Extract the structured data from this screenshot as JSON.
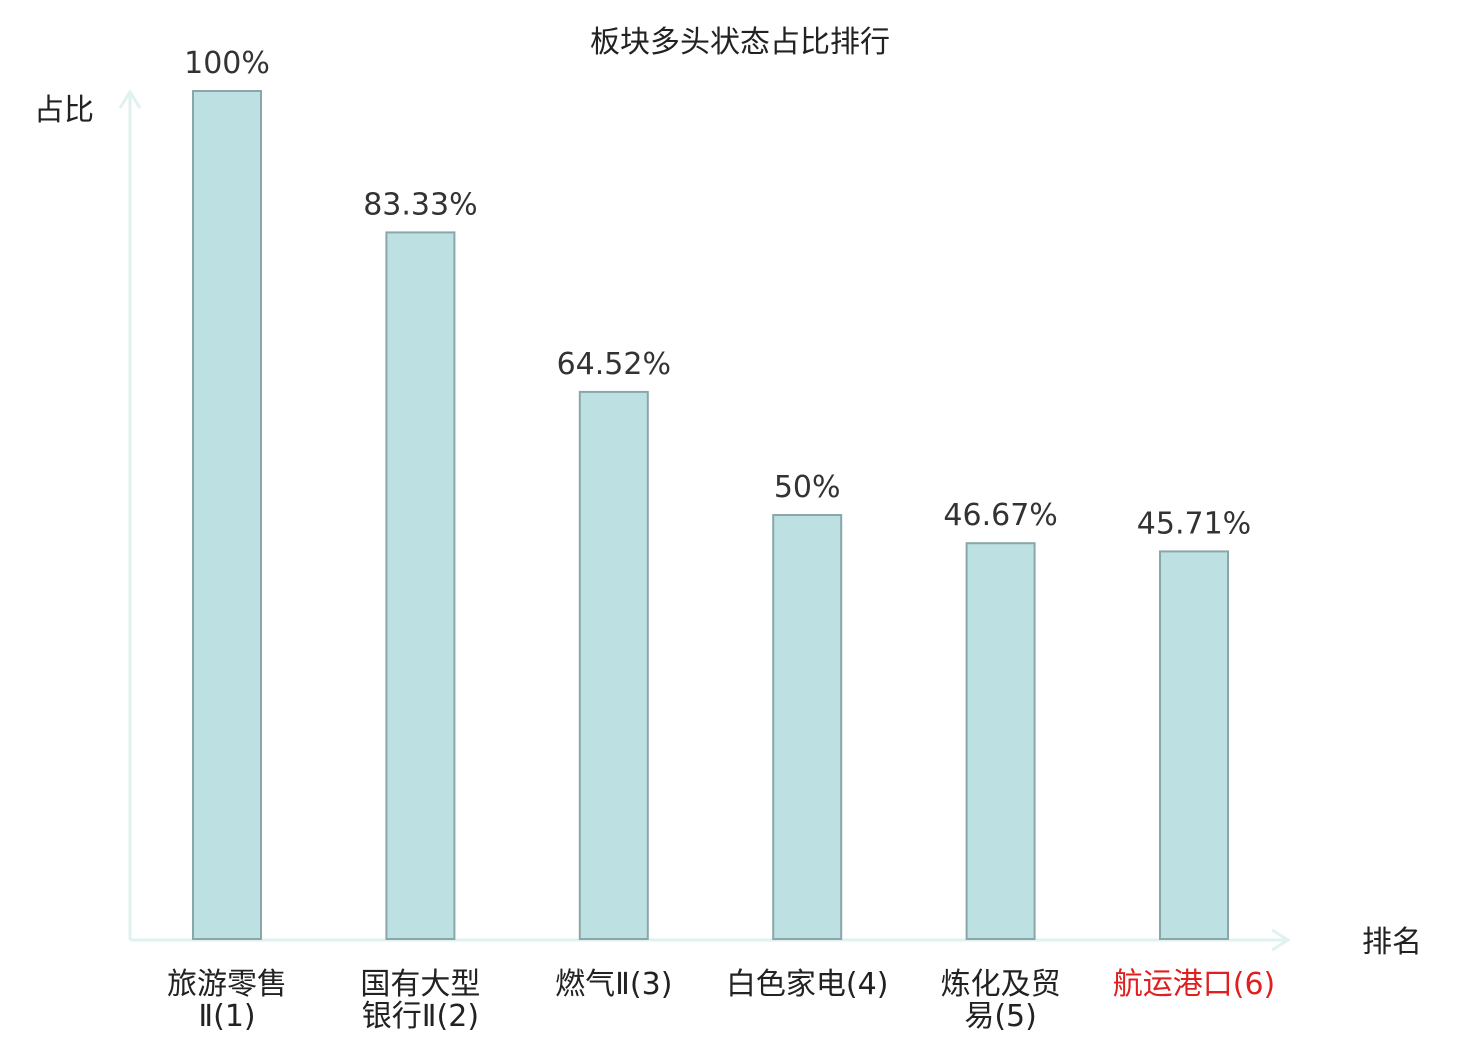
{
  "chart_data": {
    "type": "bar",
    "title": "板块多头状态占比排行",
    "ylabel": "占比",
    "xlabel": "排名",
    "ylim": [
      0,
      100
    ],
    "grid": false,
    "categories": [
      [
        "旅游零售",
        "Ⅱ(1)"
      ],
      [
        "国有大型",
        "银行Ⅱ(2)"
      ],
      [
        "燃气Ⅱ(3)"
      ],
      [
        "白色家电(4)"
      ],
      [
        "炼化及贸",
        "易(5)"
      ],
      [
        "航运港口(6)"
      ]
    ],
    "values": [
      100,
      83.33,
      64.52,
      50,
      46.67,
      45.71
    ],
    "value_labels": [
      "100%",
      "83.33%",
      "64.52%",
      "50%",
      "46.67%",
      "45.71%"
    ],
    "highlight_index": 5,
    "colors": {
      "bar_fill": "#bde0e3",
      "bar_stroke": "#8aa6a8",
      "axis": "#e0f2ef",
      "text": "#222222",
      "value_text": "#333333",
      "highlight_text": "#e02020"
    }
  }
}
